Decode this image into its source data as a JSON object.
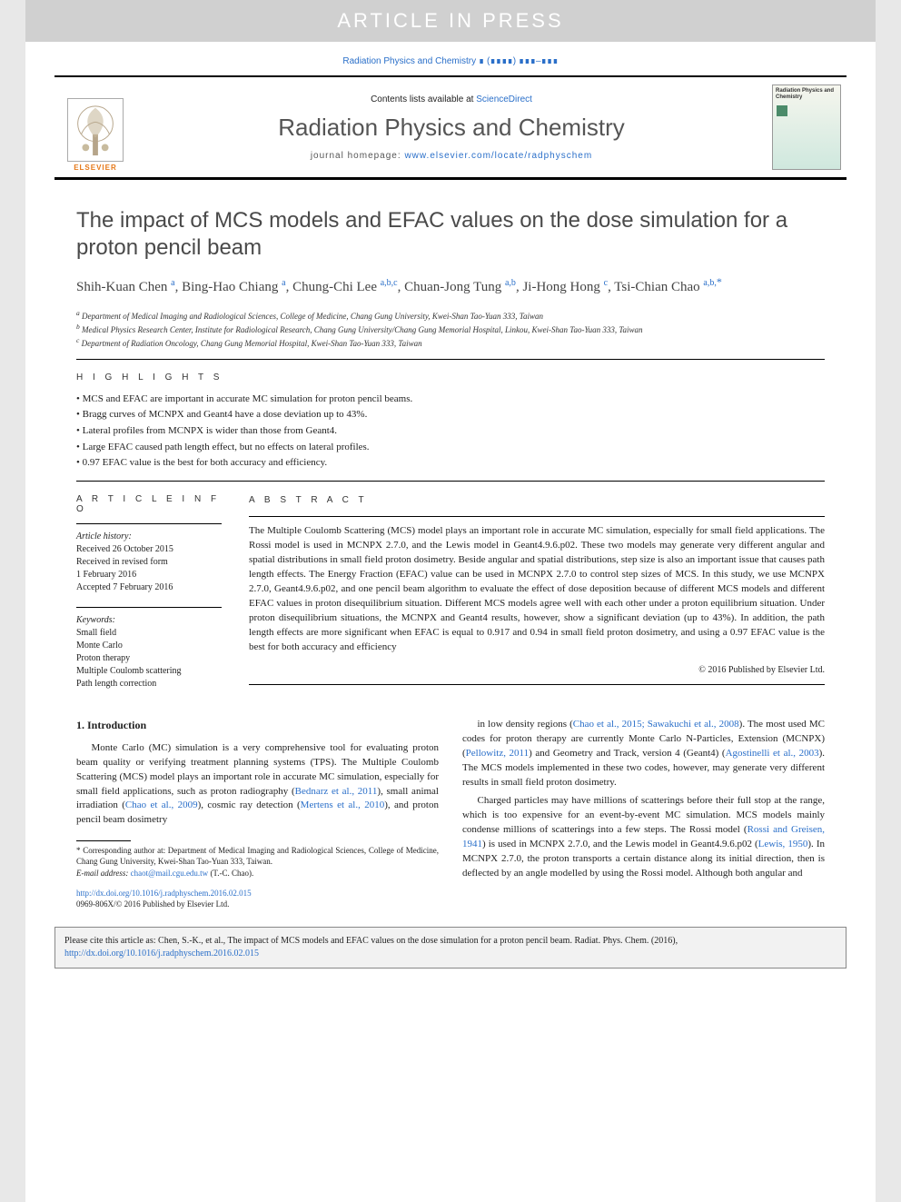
{
  "colors": {
    "link": "#2a6fc9",
    "banner_bg": "#d0d0d0",
    "banner_fg": "#ffffff",
    "elsevier_orange": "#e67817",
    "text": "#222222",
    "title_gray": "#4a4a4a",
    "citebox_bg": "#f2f2f2"
  },
  "fonts": {
    "serif": "Georgia, 'Times New Roman', serif",
    "sans": "Arial, sans-serif",
    "title_size_pt": 24,
    "body_size_pt": 11,
    "small_size_pt": 10,
    "tiny_size_pt": 9
  },
  "banner": {
    "text": "ARTICLE IN PRESS"
  },
  "journal_ref": {
    "name": "Radiation Physics and Chemistry",
    "vol": "∎ (∎∎∎∎) ∎∎∎–∎∎∎"
  },
  "masthead": {
    "contents_prefix": "Contents lists available at ",
    "contents_link": "ScienceDirect",
    "journal": "Radiation Physics and Chemistry",
    "homepage_prefix": "journal homepage: ",
    "homepage_link": "www.elsevier.com/locate/radphyschem",
    "publisher": "ELSEVIER",
    "cover_title": "Radiation Physics and Chemistry"
  },
  "article": {
    "title": "The impact of MCS models and EFAC values on the dose simulation for a proton pencil beam",
    "authors_html": "Shih-Kuan Chen <sup>a</sup>, Bing-Hao Chiang <sup>a</sup>, Chung-Chi Lee <sup>a,b,c</sup>, Chuan-Jong Tung <sup>a,b</sup>, Ji-Hong Hong <sup>c</sup>, Tsi-Chian Chao <sup>a,b,</sup><sup class='sup-star'>*</sup>",
    "affiliations": [
      "a Department of Medical Imaging and Radiological Sciences, College of Medicine, Chang Gung University, Kwei-Shan Tao-Yuan 333, Taiwan",
      "b Medical Physics Research Center, Institute for Radiological Research, Chang Gung University/Chang Gung Memorial Hospital, Linkou, Kwei-Shan Tao-Yuan 333, Taiwan",
      "c Department of Radiation Oncology, Chang Gung Memorial Hospital, Kwei-Shan Tao-Yuan 333, Taiwan"
    ]
  },
  "highlights": {
    "label": "H I G H L I G H T S",
    "items": [
      "MCS and EFAC are important in accurate MC simulation for proton pencil beams.",
      "Bragg curves of MCNPX and Geant4 have a dose deviation up to 43%.",
      "Lateral profiles from MCNPX is wider than those from Geant4.",
      "Large EFAC caused path length effect, but no effects on lateral profiles.",
      "0.97 EFAC value is the best for both accuracy and efficiency."
    ]
  },
  "info": {
    "label": "A R T I C L E  I N F O",
    "history_label": "Article history:",
    "history": [
      "Received 26 October 2015",
      "Received in revised form",
      "1 February 2016",
      "Accepted 7 February 2016"
    ],
    "keywords_label": "Keywords:",
    "keywords": [
      "Small field",
      "Monte Carlo",
      "Proton therapy",
      "Multiple Coulomb scattering",
      "Path length correction"
    ]
  },
  "abstract": {
    "label": "A B S T R A C T",
    "text": "The Multiple Coulomb Scattering (MCS) model plays an important role in accurate MC simulation, especially for small field applications. The Rossi model is used in MCNPX 2.7.0, and the Lewis model in Geant4.9.6.p02. These two models may generate very different angular and spatial distributions in small field proton dosimetry. Beside angular and spatial distributions, step size is also an important issue that causes path length effects. The Energy Fraction (EFAC) value can be used in MCNPX 2.7.0 to control step sizes of MCS. In this study, we use MCNPX 2.7.0, Geant4.9.6.p02, and one pencil beam algorithm to evaluate the effect of dose deposition because of different MCS models and different EFAC values in proton disequilibrium situation. Different MCS models agree well with each other under a proton equilibrium situation. Under proton disequilibrium situations, the MCNPX and Geant4 results, however, show a significant deviation (up to 43%). In addition, the path length effects are more significant when EFAC is equal to 0.917 and 0.94 in small field proton dosimetry, and using a 0.97 EFAC value is the best for both accuracy and efficiency",
    "copyright": "© 2016 Published by Elsevier Ltd."
  },
  "intro": {
    "heading": "1.  Introduction",
    "left": "Monte Carlo (MC) simulation is a very comprehensive tool for evaluating proton beam quality or verifying treatment planning systems (TPS). The Multiple Coulomb Scattering (MCS) model plays an important role in accurate MC simulation, especially for small field applications, such as proton radiography (Bednarz et al., 2011), small animal irradiation (Chao et al., 2009), cosmic ray detection (Mertens et al., 2010), and proton pencil beam dosimetry",
    "right1": "in low density regions (Chao et al., 2015; Sawakuchi et al., 2008). The most used MC codes for proton therapy are currently Monte Carlo N-Particles, Extension (MCNPX) (Pellowitz, 2011) and Geometry and Track, version 4 (Geant4) (Agostinelli et al., 2003). The MCS models implemented in these two codes, however, may generate very different results in small field proton dosimetry.",
    "right2": "Charged particles may have millions of scatterings before their full stop at the range, which is too expensive for an event-by-event MC simulation. MCS models mainly condense millions of scatterings into a few steps. The Rossi model (Rossi and Greisen, 1941) is used in MCNPX 2.7.0, and the Lewis model in Geant4.9.6.p02 (Lewis, 1950). In MCNPX 2.7.0, the proton transports a certain distance along its initial direction, then is deflected by an angle modelled by using the Rossi model. Although both angular and"
  },
  "footnotes": {
    "corr": "* Corresponding author at: Department of Medical Imaging and Radiological Sciences, College of Medicine, Chang Gung University, Kwei-Shan Tao-Yuan 333, Taiwan.",
    "email_label": "E-mail address: ",
    "email": "chaot@mail.cgu.edu.tw",
    "email_who": " (T.-C. Chao)."
  },
  "doi": {
    "url": "http://dx.doi.org/10.1016/j.radphyschem.2016.02.015",
    "issn_line": "0969-806X/© 2016 Published by Elsevier Ltd."
  },
  "citebox": {
    "prefix": "Please cite this article as: Chen, S.-K., et al., The impact of MCS models and EFAC values on the dose simulation for a proton pencil beam. Radiat. Phys. Chem. (2016), ",
    "link": "http://dx.doi.org/10.1016/j.radphyschem.2016.02.015"
  }
}
